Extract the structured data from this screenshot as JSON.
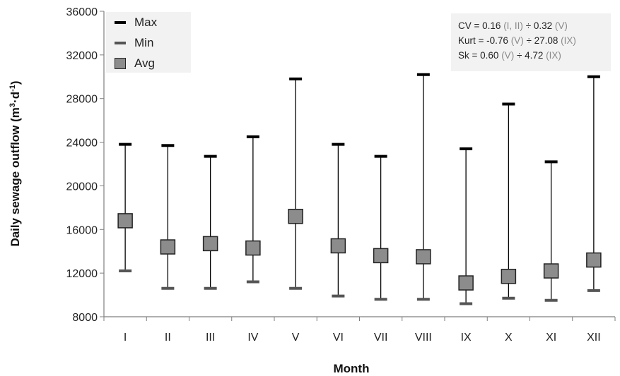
{
  "chart_data": {
    "type": "error_bar",
    "ylabel_main": "Daily sewage outflow (m",
    "ylabel_sup1": "3",
    "ylabel_mid": "·d",
    "ylabel_sup2": "-1",
    "ylabel_end": ")",
    "xlabel": "Month",
    "ylim": [
      8000,
      36000
    ],
    "yticks": [
      "8000",
      "12000",
      "16000",
      "20000",
      "24000",
      "28000",
      "32000",
      "36000"
    ],
    "ytick_values": [
      8000,
      12000,
      16000,
      20000,
      24000,
      28000,
      32000,
      36000
    ],
    "categories": [
      "I",
      "II",
      "III",
      "IV",
      "V",
      "VI",
      "VII",
      "VIII",
      "IX",
      "X",
      "XI",
      "XII"
    ],
    "series": [
      {
        "name": "Max",
        "values": [
          23800,
          23700,
          22700,
          24500,
          29800,
          23800,
          22700,
          30200,
          23400,
          27500,
          22200,
          30000
        ]
      },
      {
        "name": "Min",
        "values": [
          12200,
          10600,
          10600,
          11200,
          10600,
          9900,
          9600,
          9600,
          9200,
          9700,
          9500,
          10400
        ]
      },
      {
        "name": "Avg",
        "values": [
          16800,
          14400,
          14700,
          14300,
          17200,
          14500,
          13600,
          13500,
          11100,
          11700,
          12200,
          13200
        ]
      }
    ],
    "legend": [
      "Max",
      "Min",
      "Avg"
    ],
    "legend_position": "top-left",
    "grid": false,
    "colors": {
      "max": "#000000",
      "min": "#555555",
      "avg_fill": "#8c8c8c",
      "avg_stroke": "#222222"
    }
  },
  "stats": {
    "cv_label": "CV = 0.16",
    "cv_p1": "(I, II)",
    "cv_sep": "÷ 0.32",
    "cv_p2": "(V)",
    "kurt_label": "Kurt = -0.76",
    "kurt_p1": "(V)",
    "kurt_sep": "÷ 27.08",
    "kurt_p2": "(IX)",
    "sk_label": "Sk = 0.60",
    "sk_p1": "(V)",
    "sk_sep": "÷ 4.72",
    "sk_p2": "(IX)"
  }
}
